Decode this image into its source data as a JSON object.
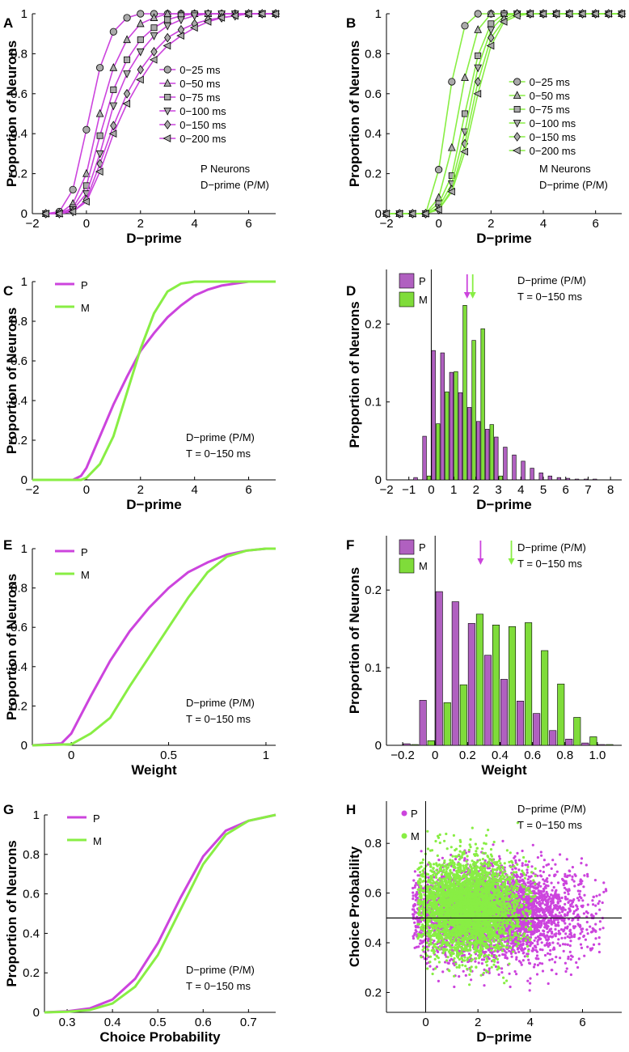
{
  "colors": {
    "P": "#cc44dd",
    "M": "#88ee44",
    "P_fill": "#b060c0",
    "M_fill": "#7fdc3a",
    "marker_fill": "#aaaaaa"
  },
  "chart_data": [
    {
      "panel": "A",
      "type": "line",
      "xlabel": "D−prime",
      "ylabel": "Proportion of Neurons",
      "xlim": [
        -2,
        7
      ],
      "ylim": [
        0,
        1
      ],
      "xticks": [
        -2,
        0,
        2,
        4,
        6
      ],
      "xtick_labels": [
        "−2",
        "0",
        "2",
        "4",
        "6"
      ],
      "yticks": [
        0,
        0.2,
        0.4,
        0.6,
        0.8,
        1
      ],
      "ytick_labels": [
        "0",
        "0.2",
        "0.4",
        "0.6",
        "0.8",
        "1"
      ],
      "color": "P",
      "annotation": [
        "P Neurons",
        "D−prime (P/M)"
      ],
      "x": [
        -1.5,
        -1,
        -0.5,
        0,
        0.5,
        1,
        1.5,
        2,
        2.5,
        3,
        3.5,
        4,
        4.5,
        5,
        5.5,
        6,
        6.5,
        7
      ],
      "series": [
        {
          "name": "0−25 ms",
          "marker": "circle",
          "values": [
            0,
            0.01,
            0.12,
            0.42,
            0.73,
            0.91,
            0.98,
            1,
            1,
            1,
            1,
            1,
            1,
            1,
            1,
            1,
            1,
            1
          ]
        },
        {
          "name": "0−50 ms",
          "marker": "triangle-up",
          "values": [
            0,
            0,
            0.05,
            0.2,
            0.5,
            0.73,
            0.87,
            0.95,
            0.98,
            1,
            1,
            1,
            1,
            1,
            1,
            1,
            1,
            1
          ]
        },
        {
          "name": "0−75 ms",
          "marker": "square",
          "values": [
            0,
            0,
            0.03,
            0.14,
            0.39,
            0.62,
            0.77,
            0.87,
            0.93,
            0.97,
            0.99,
            1,
            1,
            1,
            1,
            1,
            1,
            1
          ]
        },
        {
          "name": "0−100 ms",
          "marker": "triangle-down",
          "values": [
            0,
            0,
            0.02,
            0.1,
            0.3,
            0.54,
            0.7,
            0.81,
            0.89,
            0.94,
            0.97,
            0.99,
            1,
            1,
            1,
            1,
            1,
            1
          ]
        },
        {
          "name": "0−150 ms",
          "marker": "diamond",
          "values": [
            0,
            0,
            0.01,
            0.07,
            0.25,
            0.44,
            0.6,
            0.72,
            0.81,
            0.88,
            0.92,
            0.95,
            0.97,
            0.98,
            0.99,
            1,
            1,
            1
          ]
        },
        {
          "name": "0−200 ms",
          "marker": "triangle-left",
          "values": [
            0,
            0,
            0.01,
            0.06,
            0.21,
            0.4,
            0.55,
            0.67,
            0.77,
            0.84,
            0.89,
            0.93,
            0.96,
            0.98,
            0.99,
            1,
            1,
            1
          ]
        }
      ]
    },
    {
      "panel": "B",
      "type": "line",
      "xlabel": "D−prime",
      "ylabel": "Proportion of Neurons",
      "xlim": [
        -2,
        7
      ],
      "ylim": [
        0,
        1
      ],
      "xticks": [
        -2,
        0,
        2,
        4,
        6
      ],
      "xtick_labels": [
        "−2",
        "0",
        "2",
        "4",
        "6"
      ],
      "yticks": [
        0,
        0.2,
        0.4,
        0.6,
        0.8,
        1
      ],
      "ytick_labels": [
        "0",
        "0.2",
        "0.4",
        "0.6",
        "0.8",
        "1"
      ],
      "color": "M",
      "annotation": [
        "M Neurons",
        "D−prime (P/M)"
      ],
      "x": [
        -2,
        -1.5,
        -1,
        -0.5,
        0,
        0.5,
        1,
        1.5,
        2,
        2.5,
        3,
        3.5,
        4,
        4.5,
        5,
        5.5,
        6,
        6.5,
        7
      ],
      "series": [
        {
          "name": "0−25 ms",
          "marker": "circle",
          "values": [
            0,
            0,
            0,
            0,
            0.22,
            0.66,
            0.94,
            1,
            1,
            1,
            1,
            1,
            1,
            1,
            1,
            1,
            1,
            1,
            1
          ]
        },
        {
          "name": "0−50 ms",
          "marker": "triangle-up",
          "values": [
            0,
            0,
            0,
            0,
            0.08,
            0.33,
            0.68,
            0.92,
            1,
            1,
            1,
            1,
            1,
            1,
            1,
            1,
            1,
            1,
            1
          ]
        },
        {
          "name": "0−75 ms",
          "marker": "square",
          "values": [
            0,
            0,
            0,
            0,
            0.05,
            0.19,
            0.5,
            0.79,
            0.95,
            1,
            1,
            1,
            1,
            1,
            1,
            1,
            1,
            1,
            1
          ]
        },
        {
          "name": "0−100 ms",
          "marker": "triangle-down",
          "values": [
            0,
            0,
            0,
            0,
            0.03,
            0.15,
            0.41,
            0.73,
            0.92,
            0.99,
            1,
            1,
            1,
            1,
            1,
            1,
            1,
            1,
            1
          ]
        },
        {
          "name": "0−150 ms",
          "marker": "diamond",
          "values": [
            0,
            0,
            0,
            0,
            0.02,
            0.12,
            0.35,
            0.66,
            0.88,
            0.97,
            1,
            1,
            1,
            1,
            1,
            1,
            1,
            1,
            1
          ]
        },
        {
          "name": "0−200 ms",
          "marker": "triangle-left",
          "values": [
            0,
            0,
            0,
            0,
            0.02,
            0.11,
            0.31,
            0.6,
            0.84,
            0.96,
            0.99,
            1,
            1,
            1,
            1,
            1,
            1,
            1,
            1
          ]
        }
      ]
    },
    {
      "panel": "C",
      "type": "line",
      "xlabel": "D−prime",
      "ylabel": "Proportion of Neurons",
      "xlim": [
        -2,
        7
      ],
      "ylim": [
        0,
        1
      ],
      "xticks": [
        -2,
        0,
        2,
        4,
        6
      ],
      "xtick_labels": [
        "−2",
        "0",
        "2",
        "4",
        "6"
      ],
      "yticks": [
        0,
        0.2,
        0.4,
        0.6,
        0.8,
        1
      ],
      "ytick_labels": [
        "0",
        "0.2",
        "0.4",
        "0.6",
        "0.8",
        "1"
      ],
      "annotation": [
        "D−prime (P/M)",
        "T = 0−150 ms"
      ],
      "legend": [
        {
          "name": "P",
          "color": "P"
        },
        {
          "name": "M",
          "color": "M"
        }
      ],
      "series": [
        {
          "name": "P",
          "color": "P",
          "x": [
            -2,
            -0.5,
            -0.2,
            0,
            0.5,
            1,
            1.5,
            2,
            2.5,
            3,
            3.5,
            4,
            4.5,
            5,
            5.5,
            6,
            7
          ],
          "values": [
            0,
            0,
            0.02,
            0.06,
            0.22,
            0.38,
            0.52,
            0.65,
            0.74,
            0.82,
            0.88,
            0.93,
            0.96,
            0.98,
            0.99,
            1,
            1
          ]
        },
        {
          "name": "M",
          "color": "M",
          "x": [
            -2,
            -0.2,
            0,
            0.5,
            1,
            1.5,
            2,
            2.5,
            3,
            3.5,
            4,
            5,
            7
          ],
          "values": [
            0,
            0,
            0.01,
            0.08,
            0.22,
            0.44,
            0.66,
            0.84,
            0.95,
            0.99,
            1,
            1,
            1
          ]
        }
      ]
    },
    {
      "panel": "D",
      "type": "bar",
      "xlabel": "D−prime",
      "ylabel": "Proportion of Neurons",
      "xlim": [
        -2,
        8.5
      ],
      "ylim": [
        0,
        0.27
      ],
      "xticks": [
        -2,
        -1,
        0,
        1,
        2,
        3,
        4,
        5,
        6,
        7,
        8
      ],
      "xtick_labels": [
        "−2",
        "−1",
        "0",
        "1",
        "2",
        "3",
        "4",
        "5",
        "6",
        "7",
        "8"
      ],
      "yticks": [
        0,
        0.1,
        0.2
      ],
      "ytick_labels": [
        "0",
        "0.1",
        "0.2"
      ],
      "annotation": [
        "D−prime (P/M)",
        "T = 0−150 ms"
      ],
      "legend": [
        {
          "name": "P",
          "color": "P_fill"
        },
        {
          "name": "M",
          "color": "M_fill"
        }
      ],
      "vline": 0,
      "arrows": [
        {
          "series": "P",
          "x": 1.6
        },
        {
          "series": "M",
          "x": 1.85
        }
      ],
      "bin_width": 0.4,
      "categories": [
        -0.6,
        -0.2,
        0.2,
        0.6,
        1.0,
        1.4,
        1.8,
        2.2,
        2.6,
        3.0,
        3.4,
        3.8,
        4.2,
        4.6,
        5.0,
        5.4,
        5.8,
        6.2,
        6.6,
        7.0,
        7.4,
        7.8
      ],
      "series": [
        {
          "name": "P",
          "color": "P_fill",
          "values": [
            0.003,
            0.056,
            0.166,
            0.163,
            0.138,
            0.112,
            0.093,
            0.075,
            0.065,
            0.055,
            0.042,
            0.032,
            0.024,
            0.015,
            0.009,
            0.005,
            0.003,
            0.002,
            0.001,
            0.001,
            0.001,
            0
          ]
        },
        {
          "name": "M",
          "color": "M_fill",
          "values": [
            0,
            0.005,
            0.072,
            0.113,
            0.139,
            0.224,
            0.179,
            0.194,
            0.071,
            0.005,
            0,
            0,
            0,
            0,
            0,
            0,
            0,
            0,
            0,
            0,
            0,
            0
          ]
        }
      ]
    },
    {
      "panel": "E",
      "type": "line",
      "xlabel": "Weight",
      "ylabel": "Proportion of Neurons",
      "xlim": [
        -0.2,
        1.05
      ],
      "ylim": [
        0,
        1
      ],
      "xticks": [
        0,
        0.5,
        1
      ],
      "xtick_labels": [
        "0",
        "0.5",
        "1"
      ],
      "yticks": [
        0,
        0.2,
        0.4,
        0.6,
        0.8,
        1
      ],
      "ytick_labels": [
        "0",
        "0.2",
        "0.4",
        "0.6",
        "0.8",
        "1"
      ],
      "annotation": [
        "D−prime (P/M)",
        "T = 0−150 ms"
      ],
      "legend": [
        {
          "name": "P",
          "color": "P"
        },
        {
          "name": "M",
          "color": "M"
        }
      ],
      "series": [
        {
          "name": "P",
          "color": "P",
          "x": [
            -0.2,
            -0.05,
            0,
            0.1,
            0.2,
            0.3,
            0.4,
            0.5,
            0.6,
            0.7,
            0.8,
            0.9,
            1.0,
            1.05
          ],
          "values": [
            0,
            0.01,
            0.06,
            0.25,
            0.43,
            0.58,
            0.7,
            0.8,
            0.88,
            0.93,
            0.97,
            0.99,
            1,
            1
          ]
        },
        {
          "name": "M",
          "color": "M",
          "x": [
            -0.2,
            0,
            0.1,
            0.2,
            0.3,
            0.4,
            0.5,
            0.6,
            0.7,
            0.8,
            0.9,
            1.0,
            1.05
          ],
          "values": [
            0,
            0.005,
            0.06,
            0.14,
            0.3,
            0.45,
            0.6,
            0.75,
            0.88,
            0.96,
            0.99,
            1,
            1
          ]
        }
      ]
    },
    {
      "panel": "F",
      "type": "bar",
      "xlabel": "Weight",
      "ylabel": "Proportion of Neurons",
      "xlim": [
        -0.3,
        1.15
      ],
      "ylim": [
        0,
        0.27
      ],
      "xticks": [
        -0.2,
        0,
        0.2,
        0.4,
        0.6,
        0.8,
        1.0
      ],
      "xtick_labels": [
        "−0.2",
        "0",
        "0.2",
        "0.4",
        "0.6",
        "0.8",
        "1.0"
      ],
      "yticks": [
        0,
        0.1,
        0.2
      ],
      "ytick_labels": [
        "0",
        "0.1",
        "0.2"
      ],
      "annotation": [
        "D−prime (P/M)",
        "T = 0−150 ms"
      ],
      "legend": [
        {
          "name": "P",
          "color": "P_fill"
        },
        {
          "name": "M",
          "color": "M_fill"
        }
      ],
      "vline": 0,
      "arrows": [
        {
          "series": "P",
          "x": 0.28
        },
        {
          "series": "M",
          "x": 0.47
        }
      ],
      "bin_width": 0.1,
      "categories": [
        -0.15,
        -0.05,
        0.05,
        0.15,
        0.25,
        0.35,
        0.45,
        0.55,
        0.65,
        0.75,
        0.85,
        0.95,
        1.05
      ],
      "series": [
        {
          "name": "P",
          "color": "P_fill",
          "values": [
            0.002,
            0.058,
            0.198,
            0.185,
            0.157,
            0.116,
            0.085,
            0.057,
            0.041,
            0.019,
            0.008,
            0.003,
            0.001
          ]
        },
        {
          "name": "M",
          "color": "M_fill",
          "values": [
            0.001,
            0.006,
            0.055,
            0.078,
            0.169,
            0.155,
            0.153,
            0.158,
            0.122,
            0.079,
            0.036,
            0.011,
            0.001
          ]
        }
      ]
    },
    {
      "panel": "G",
      "type": "line",
      "xlabel": "Choice Probability",
      "ylabel": "Proportion of Neurons",
      "xlim": [
        0.25,
        0.76
      ],
      "ylim": [
        0,
        1
      ],
      "xticks": [
        0.3,
        0.4,
        0.5,
        0.6,
        0.7
      ],
      "xtick_labels": [
        "0.3",
        "0.4",
        "0.5",
        "0.6",
        "0.7"
      ],
      "yticks": [
        0,
        0.2,
        0.4,
        0.6,
        0.8,
        1
      ],
      "ytick_labels": [
        "0",
        "0.2",
        "0.4",
        "0.6",
        "0.8",
        "1"
      ],
      "annotation": [
        "D−prime (P/M)",
        "T = 0−150 ms"
      ],
      "legend": [
        {
          "name": "P",
          "color": "P"
        },
        {
          "name": "M",
          "color": "M"
        }
      ],
      "series": [
        {
          "name": "P",
          "color": "P",
          "x": [
            0.25,
            0.3,
            0.35,
            0.4,
            0.45,
            0.5,
            0.55,
            0.6,
            0.65,
            0.7,
            0.76
          ],
          "values": [
            0,
            0.005,
            0.02,
            0.065,
            0.17,
            0.35,
            0.58,
            0.79,
            0.92,
            0.97,
            1
          ]
        },
        {
          "name": "M",
          "color": "M",
          "x": [
            0.25,
            0.3,
            0.35,
            0.4,
            0.45,
            0.5,
            0.55,
            0.6,
            0.65,
            0.7,
            0.76
          ],
          "values": [
            0,
            0.003,
            0.012,
            0.045,
            0.13,
            0.29,
            0.52,
            0.75,
            0.9,
            0.97,
            1
          ]
        }
      ]
    },
    {
      "panel": "H",
      "type": "scatter",
      "xlabel": "D−prime",
      "ylabel": "Choice Probability",
      "xlim": [
        -1.5,
        7.5
      ],
      "ylim": [
        0.12,
        0.97
      ],
      "xticks": [
        0,
        2,
        4,
        6
      ],
      "xtick_labels": [
        "0",
        "2",
        "4",
        "6"
      ],
      "yticks": [
        0.2,
        0.4,
        0.6,
        0.8
      ],
      "ytick_labels": [
        "0.2",
        "0.4",
        "0.6",
        "0.8"
      ],
      "annotation": [
        "D−prime (P/M)",
        "T = 0−150 ms"
      ],
      "legend": [
        {
          "name": "P",
          "color": "P"
        },
        {
          "name": "M",
          "color": "M"
        }
      ],
      "vline": 0,
      "hline": 0.5,
      "series": [
        {
          "name": "P",
          "color": "P",
          "description": "dense cloud",
          "x_range": [
            -0.5,
            7.0
          ],
          "y_range": [
            0.18,
            0.84
          ],
          "center": [
            2.5,
            0.52
          ]
        },
        {
          "name": "M",
          "color": "M",
          "description": "dense cloud",
          "x_range": [
            -0.3,
            4.2
          ],
          "y_range": [
            0.2,
            0.9
          ],
          "center": [
            1.6,
            0.54
          ]
        }
      ]
    }
  ]
}
